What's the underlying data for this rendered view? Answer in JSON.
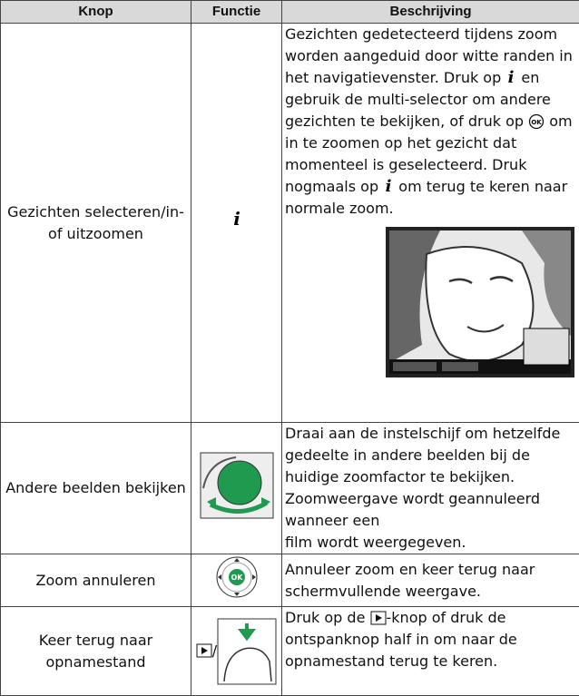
{
  "table": {
    "headers": [
      "Knop",
      "Functie",
      "Beschrijving"
    ],
    "rows": [
      {
        "button": "Gezichten selecteren/in- of uitzoomen",
        "description": [
          "Gezichten gedetecteerd tijdens zoom worden aangeduid door witte randen in het navigatievenster. Druk op ",
          " en gebruik de multi-selector om andere gezichten te bekijken, of druk op ",
          " om in te zoomen op het gezicht dat momenteel is geselecteerd. Druk nogmaals op ",
          " om terug te keren naar normale zoom."
        ]
      },
      {
        "button": "Andere beelden bekijken",
        "description": [
          "Draai aan de instelschijf om hetzelfde gedeelte in andere beelden bij de huidige zoomfactor te bekijken. Zoomweergave wordt geannuleerd wanneer een",
          "film wordt weergegeven."
        ]
      },
      {
        "button": "Zoom annuleren",
        "description": [
          "Annuleer zoom en keer terug naar schermvullende weergave."
        ]
      },
      {
        "button": "Keer terug naar opnamestand",
        "function": "/",
        "description": [
          "Druk op de ",
          "-knop of druk de ontspanknop half in om naar de opnamestand terug te keren."
        ]
      }
    ]
  }
}
